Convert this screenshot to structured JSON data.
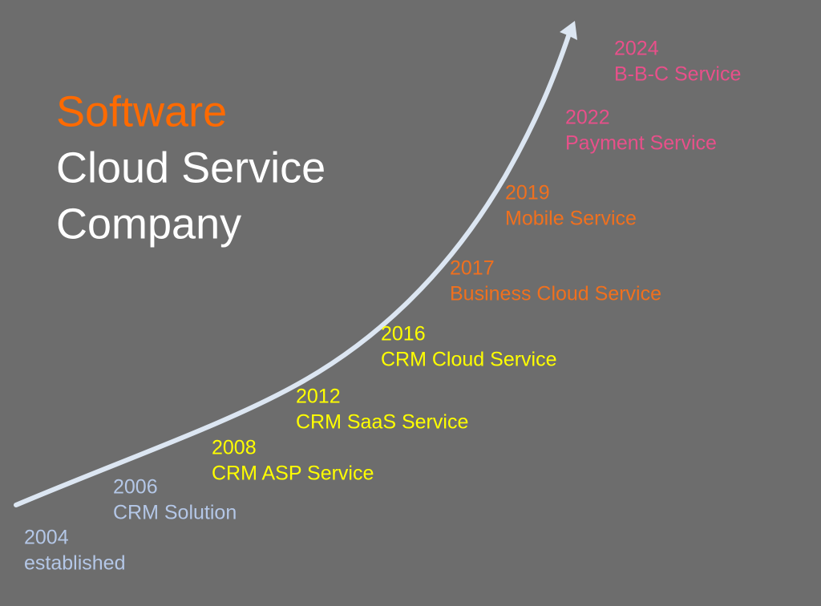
{
  "title": {
    "line1": "Software",
    "line2": "Cloud Service",
    "line3": "Company"
  },
  "milestones": [
    {
      "year": "2004",
      "label": "established"
    },
    {
      "year": "2006",
      "label": "CRM Solution"
    },
    {
      "year": "2008",
      "label": "CRM ASP Service"
    },
    {
      "year": "2012",
      "label": "CRM SaaS Service"
    },
    {
      "year": "2016",
      "label": "CRM Cloud Service"
    },
    {
      "year": "2017",
      "label": "Business Cloud Service"
    },
    {
      "year": "2019",
      "label": "Mobile Service"
    },
    {
      "year": "2022",
      "label": "Payment Service"
    },
    {
      "year": "2024",
      "label": "B-B-C Service"
    }
  ]
}
